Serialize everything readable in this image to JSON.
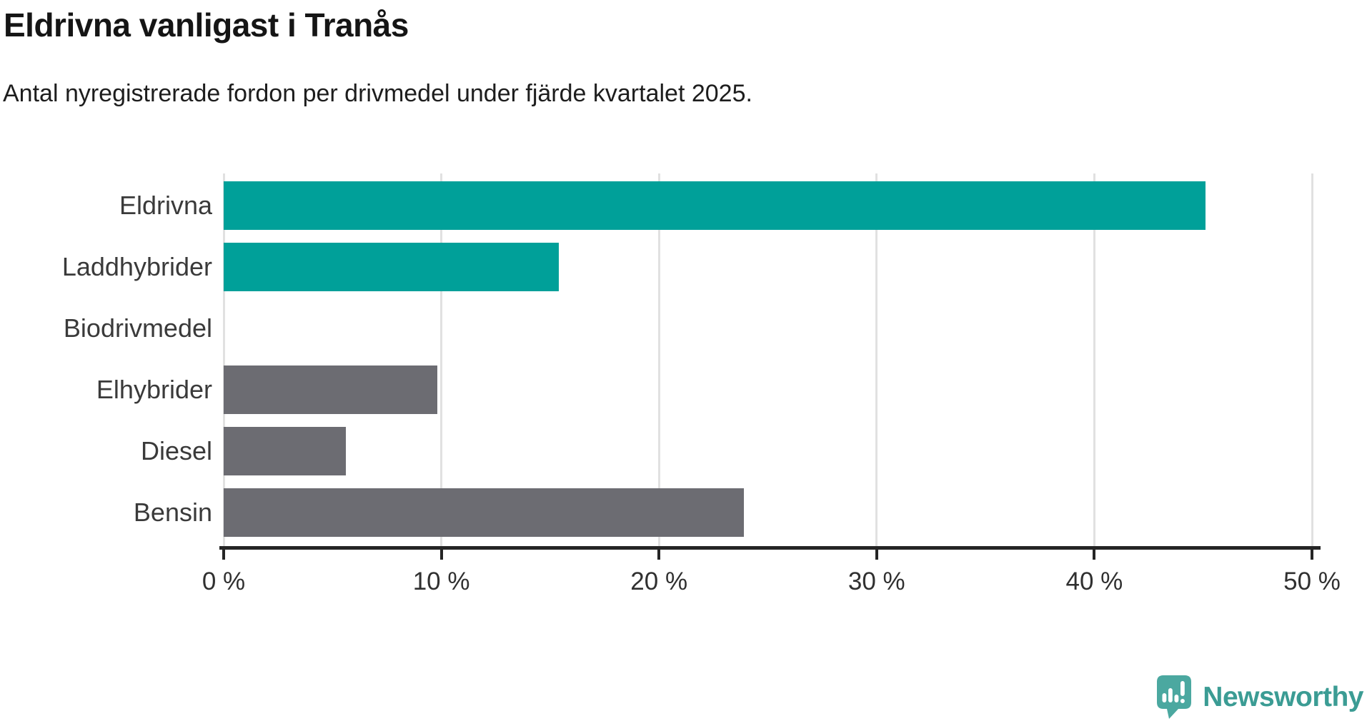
{
  "title": "Eldrivna vanligast i Tranås",
  "subtitle": "Antal nyregistrerade fordon per drivmedel under fjärde kvartalet 2025.",
  "chart_data": {
    "type": "bar",
    "orientation": "horizontal",
    "title": "Eldrivna vanligast i Tranås",
    "subtitle": "Antal nyregistrerade fordon per drivmedel under fjärde kvartalet 2025.",
    "categories": [
      "Eldrivna",
      "Laddhybrider",
      "Biodrivmedel",
      "Elhybrider",
      "Diesel",
      "Bensin"
    ],
    "values": [
      45.1,
      15.4,
      0,
      9.8,
      5.6,
      23.9
    ],
    "unit": "%",
    "xlim": [
      0,
      50
    ],
    "x_ticks": [
      0,
      10,
      20,
      30,
      40,
      50
    ],
    "x_tick_labels": [
      "0 %",
      "10 %",
      "20 %",
      "30 %",
      "40 %",
      "50 %"
    ],
    "bar_colors": [
      "#00A099",
      "#00A099",
      "#6C6C72",
      "#6C6C72",
      "#6C6C72",
      "#6C6C72"
    ],
    "grid": "vertical-gridlines",
    "legend": false,
    "xlabel": "",
    "ylabel": ""
  },
  "colors": {
    "teal": "#00A099",
    "gray": "#6C6C72",
    "gridline": "#E1E1E1",
    "axis": "#252525",
    "title_text": "#151515",
    "label_text": "#3A3A3A",
    "logo_fill": "#4BA8A0",
    "logo_text": "#3B9C94"
  },
  "branding": {
    "logo_text": "Newsworthy"
  }
}
